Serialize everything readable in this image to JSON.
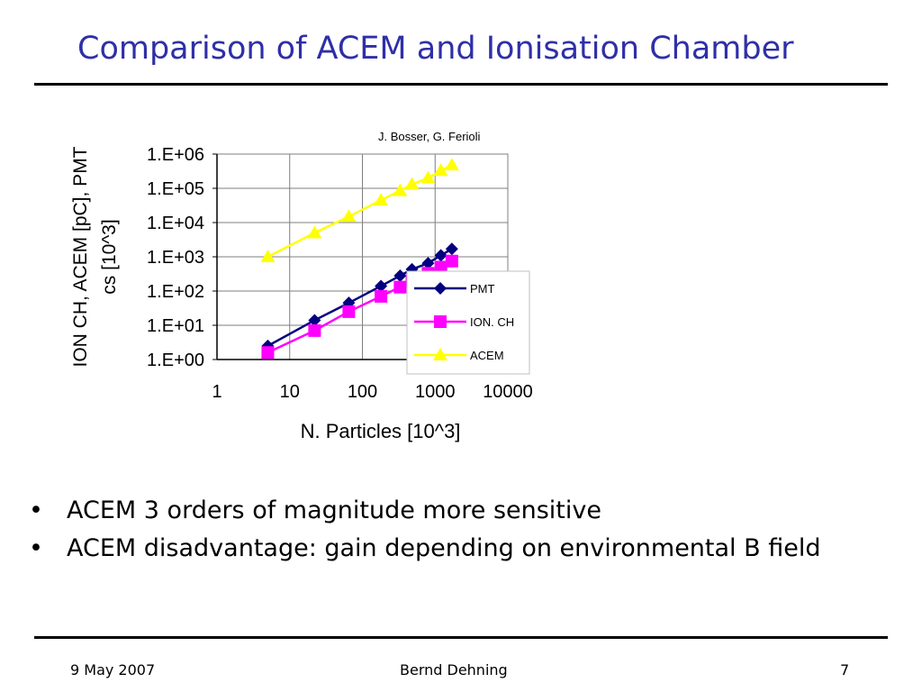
{
  "title": "Comparison of ACEM and Ionisation Chamber",
  "credit": "J. Bosser, G. Ferioli",
  "bullets": [
    "ACEM 3 orders of magnitude more sensitive",
    "ACEM disadvantage: gain depending on environmental B field"
  ],
  "footer": {
    "date": "9 May 2007",
    "author": "Bernd Dehning",
    "page": "7"
  },
  "chart_data": {
    "type": "line",
    "title": "",
    "xlabel": "N. Particles [10^3]",
    "ylabel": "ION CH, ACEM [pC], PMT cs [10^3]",
    "xscale": "log",
    "yscale": "log",
    "xlim": [
      1,
      10000
    ],
    "ylim": [
      1,
      1000000
    ],
    "xticks": [
      "1",
      "10",
      "100",
      "1000",
      "10000"
    ],
    "yticks": [
      "1.E+00",
      "1.E+01",
      "1.E+02",
      "1.E+03",
      "1.E+04",
      "1.E+05",
      "1.E+06"
    ],
    "grid": true,
    "legend_position": "right",
    "series": [
      {
        "name": "PMT",
        "color": "#000080",
        "marker": "diamond",
        "x": [
          5,
          22,
          65,
          180,
          330,
          480,
          800,
          1200,
          1700
        ],
        "y": [
          2.5,
          14,
          45,
          140,
          280,
          430,
          650,
          1100,
          1700
        ]
      },
      {
        "name": "ION. CH",
        "color": "#ff00ff",
        "marker": "square",
        "x": [
          5,
          22,
          65,
          180,
          330,
          480,
          800,
          1200,
          1700
        ],
        "y": [
          1.6,
          7,
          25,
          70,
          130,
          200,
          330,
          500,
          750
        ]
      },
      {
        "name": "ACEM",
        "color": "#ffff00",
        "marker": "triangle",
        "x": [
          5,
          22,
          65,
          180,
          330,
          480,
          800,
          1200,
          1700
        ],
        "y": [
          1000,
          5000,
          15000,
          45000,
          85000,
          130000,
          200000,
          330000,
          480000
        ]
      }
    ]
  }
}
